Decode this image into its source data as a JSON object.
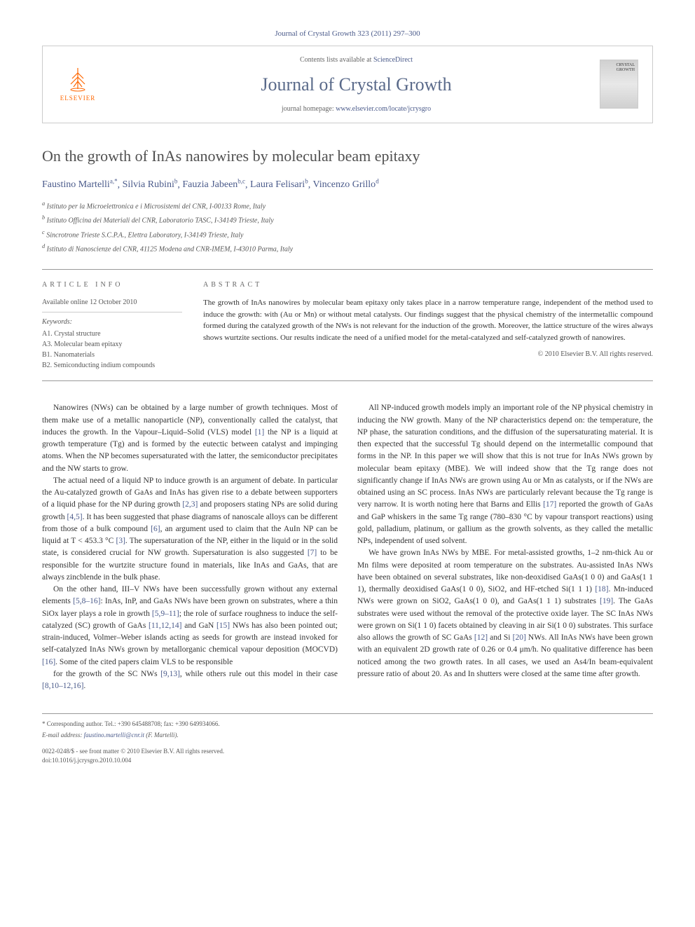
{
  "header": {
    "citation": "Journal of Crystal Growth 323 (2011) 297–300",
    "contents_prefix": "Contents lists available at ",
    "contents_link": "ScienceDirect",
    "journal_name": "Journal of Crystal Growth",
    "homepage_prefix": "journal homepage: ",
    "homepage_url": "www.elsevier.com/locate/jcrysgro",
    "elsevier_label": "ELSEVIER",
    "cover_text": "CRYSTAL GROWTH"
  },
  "article": {
    "title": "On the growth of InAs nanowires by molecular beam epitaxy",
    "authors_html": "Faustino Martelli",
    "authors": [
      {
        "name": "Faustino Martelli",
        "sup": "a,*"
      },
      {
        "name": "Silvia Rubini",
        "sup": "b"
      },
      {
        "name": "Fauzia Jabeen",
        "sup": "b,c"
      },
      {
        "name": "Laura Felisari",
        "sup": "b"
      },
      {
        "name": "Vincenzo Grillo",
        "sup": "d"
      }
    ],
    "affiliations": [
      "a Istituto per la Microelettronica e i Microsistemi del CNR, I-00133 Rome, Italy",
      "b Istituto Officina dei Materiali del CNR, Laboratorio TASC, I-34149 Trieste, Italy",
      "c Sincrotrone Trieste S.C.P.A., Elettra Laboratory, I-34149 Trieste, Italy",
      "d Istituto di Nanoscienze del CNR, 41125 Modena and CNR-IMEM, I-43010 Parma, Italy"
    ]
  },
  "info": {
    "section_label": "ARTICLE INFO",
    "available": "Available online 12 October 2010",
    "keywords_label": "Keywords:",
    "keywords": [
      "A1. Crystal structure",
      "A3. Molecular beam epitaxy",
      "B1. Nanomaterials",
      "B2. Semiconducting indium compounds"
    ]
  },
  "abstract": {
    "section_label": "ABSTRACT",
    "text": "The growth of InAs nanowires by molecular beam epitaxy only takes place in a narrow temperature range, independent of the method used to induce the growth: with (Au or Mn) or without metal catalysts. Our findings suggest that the physical chemistry of the intermetallic compound formed during the catalyzed growth of the NWs is not relevant for the induction of the growth. Moreover, the lattice structure of the wires always shows wurtzite sections. Our results indicate the need of a unified model for the metal-catalyzed and self-catalyzed growth of nanowires.",
    "copyright": "© 2010 Elsevier B.V. All rights reserved."
  },
  "body": {
    "p1": "Nanowires (NWs) can be obtained by a large number of growth techniques. Most of them make use of a metallic nanoparticle (NP), conventionally called the catalyst, that induces the growth. In the Vapour–Liquid–Solid (VLS) model [1] the NP is a liquid at growth temperature (Tg) and is formed by the eutectic between catalyst and impinging atoms. When the NP becomes supersaturated with the latter, the semiconductor precipitates and the NW starts to grow.",
    "p2": "The actual need of a liquid NP to induce growth is an argument of debate. In particular the Au-catalyzed growth of GaAs and InAs has given rise to a debate between supporters of a liquid phase for the NP during growth [2,3] and proposers stating NPs are solid during growth [4,5]. It has been suggested that phase diagrams of nanoscale alloys can be different from those of a bulk compound [6], an argument used to claim that the AuIn NP can be liquid at T < 453.3 °C [3]. The supersaturation of the NP, either in the liquid or in the solid state, is considered crucial for NW growth. Supersaturation is also suggested [7] to be responsible for the wurtzite structure found in materials, like InAs and GaAs, that are always zincblende in the bulk phase.",
    "p3": "On the other hand, III–V NWs have been successfully grown without any external elements [5,8–16]: InAs, InP, and GaAs NWs have been grown on substrates, where a thin SiOx layer plays a role in growth [5,9–11]; the role of surface roughness to induce the self-catalyzed (SC) growth of GaAs [11,12,14] and GaN [15] NWs has also been pointed out; strain-induced, Volmer–Weber islands acting as seeds for growth are instead invoked for self-catalyzed InAs NWs grown by metallorganic chemical vapour deposition (MOCVD) [16]. Some of the cited papers claim VLS to be responsible",
    "p4": "for the growth of the SC NWs [9,13], while others rule out this model in their case [8,10–12,16].",
    "p5": "All NP-induced growth models imply an important role of the NP physical chemistry in inducing the NW growth. Many of the NP characteristics depend on: the temperature, the NP phase, the saturation conditions, and the diffusion of the supersaturating material. It is then expected that the successful Tg should depend on the intermetallic compound that forms in the NP. In this paper we will show that this is not true for InAs NWs grown by molecular beam epitaxy (MBE). We will indeed show that the Tg range does not significantly change if InAs NWs are grown using Au or Mn as catalysts, or if the NWs are obtained using an SC process. InAs NWs are particularly relevant because the Tg range is very narrow. It is worth noting here that Barns and Ellis [17] reported the growth of GaAs and GaP whiskers in the same Tg range (780–830 °C by vapour transport reactions) using gold, palladium, platinum, or gallium as the growth solvents, as they called the metallic NPs, independent of used solvent.",
    "p6": "We have grown InAs NWs by MBE. For metal-assisted growths, 1–2 nm-thick Au or Mn films were deposited at room temperature on the substrates. Au-assisted InAs NWs have been obtained on several substrates, like non-deoxidised GaAs(1 0 0) and GaAs(1 1 1), thermally deoxidised GaAs(1 0 0), SiO2, and HF-etched Si(1 1 1) [18]. Mn-induced NWs were grown on SiO2, GaAs(1 0 0), and GaAs(1 1 1) substrates [19]. The GaAs substrates were used without the removal of the protective oxide layer. The SC InAs NWs were grown on Si(1 1 0) facets obtained by cleaving in air Si(1 0 0) substrates. This surface also allows the growth of SC GaAs [12] and Si [20] NWs. All InAs NWs have been grown with an equivalent 2D growth rate of 0.26 or 0.4 μm/h. No qualitative difference has been noticed among the two growth rates. In all cases, we used an As4/In beam-equivalent pressure ratio of about 20. As and In shutters were closed at the same time after growth."
  },
  "footer": {
    "corresponding": "* Corresponding author. Tel.: +390 645488708; fax: +390 649934066.",
    "email_label": "E-mail address: ",
    "email": "faustino.martelli@cnr.it",
    "email_suffix": " (F. Martelli).",
    "issn": "0022-0248/$ - see front matter © 2010 Elsevier B.V. All rights reserved.",
    "doi": "doi:10.1016/j.jcrysgro.2010.10.004"
  },
  "colors": {
    "link": "#4a5a8a",
    "text": "#333333",
    "border": "#cccccc",
    "elsevier_orange": "#ff6600"
  }
}
